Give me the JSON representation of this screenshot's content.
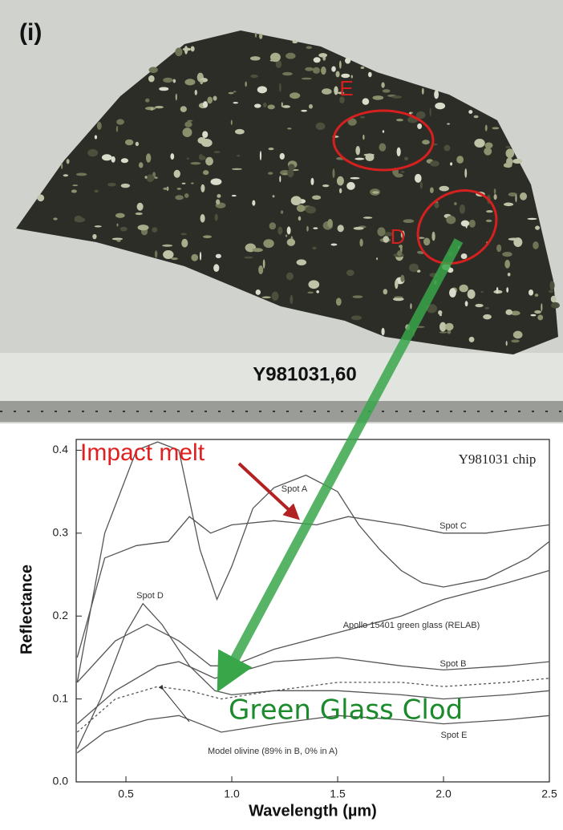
{
  "photo": {
    "panel_label": "(i)",
    "ellipse_e": "E",
    "ellipse_d": "D",
    "sample": "Y981031,60"
  },
  "chart_data": {
    "type": "line",
    "note": "Y981031 chip",
    "x_label": "Wavelength (µm)",
    "y_label": "Reflectance",
    "annotations": {
      "impact_melt": "Impact melt",
      "green_glass": "Green Glass Clod"
    },
    "xlim": [
      0.265,
      2.5
    ],
    "ylim": [
      0,
      0.413
    ],
    "xticks": [
      0.5,
      {
        "value": 1,
        "label": "1.0"
      },
      1.5,
      {
        "value": 2,
        "label": "2.0"
      },
      2.5
    ],
    "yticks": [
      {
        "value": 0,
        "label": "0.0"
      },
      0.1,
      0.2,
      0.3,
      0.4
    ],
    "series": [
      {
        "name": "Spot A",
        "color": "#555555",
        "x": [
          0.27,
          0.4,
          0.55,
          0.65,
          0.75,
          0.85,
          0.93,
          1.0,
          1.1,
          1.2,
          1.35,
          1.5,
          1.6,
          1.7,
          1.8,
          1.9,
          2.0,
          2.2,
          2.4,
          2.5
        ],
        "values": [
          0.12,
          0.3,
          0.4,
          0.41,
          0.4,
          0.28,
          0.22,
          0.26,
          0.33,
          0.355,
          0.37,
          0.35,
          0.31,
          0.28,
          0.255,
          0.24,
          0.235,
          0.245,
          0.27,
          0.29
        ]
      },
      {
        "name": "Spot C",
        "color": "#555555",
        "x": [
          0.27,
          0.4,
          0.55,
          0.7,
          0.8,
          0.9,
          1.0,
          1.2,
          1.4,
          1.55,
          1.8,
          2.0,
          2.2,
          2.5
        ],
        "values": [
          0.15,
          0.27,
          0.285,
          0.29,
          0.32,
          0.3,
          0.31,
          0.315,
          0.31,
          0.32,
          0.31,
          0.3,
          0.3,
          0.31
        ]
      },
      {
        "name": "Apollo 15401 green glass (RELAB)",
        "color": "#555555",
        "x": [
          0.27,
          0.45,
          0.6,
          0.75,
          0.9,
          1.0,
          1.2,
          1.5,
          1.8,
          2.0,
          2.3,
          2.5
        ],
        "values": [
          0.12,
          0.17,
          0.19,
          0.17,
          0.14,
          0.14,
          0.16,
          0.18,
          0.2,
          0.22,
          0.24,
          0.255
        ]
      },
      {
        "name": "Spot D",
        "color": "#555555",
        "x": [
          0.27,
          0.38,
          0.5,
          0.58,
          0.67,
          0.8,
          0.92,
          1.0,
          1.2,
          1.5,
          1.8,
          2.0,
          2.3,
          2.5
        ],
        "values": [
          0.04,
          0.1,
          0.18,
          0.215,
          0.19,
          0.14,
          0.11,
          0.105,
          0.11,
          0.11,
          0.105,
          0.1,
          0.105,
          0.11
        ]
      },
      {
        "name": "Spot B",
        "color": "#555555",
        "x": [
          0.27,
          0.45,
          0.65,
          0.75,
          0.92,
          1.0,
          1.2,
          1.5,
          1.8,
          2.0,
          2.3,
          2.5
        ],
        "values": [
          0.07,
          0.11,
          0.14,
          0.145,
          0.125,
          0.13,
          0.145,
          0.15,
          0.14,
          0.135,
          0.14,
          0.145
        ]
      },
      {
        "name": "Model olivine (89% in B, 0% in A)",
        "color": "#555555",
        "dashed": true,
        "x": [
          0.27,
          0.45,
          0.65,
          0.8,
          0.95,
          1.2,
          1.5,
          1.8,
          2.0,
          2.3,
          2.5
        ],
        "values": [
          0.06,
          0.1,
          0.115,
          0.11,
          0.1,
          0.11,
          0.12,
          0.12,
          0.115,
          0.12,
          0.125
        ]
      },
      {
        "name": "Spot E",
        "color": "#555555",
        "x": [
          0.27,
          0.4,
          0.6,
          0.75,
          0.95,
          1.2,
          1.5,
          1.8,
          2.0,
          2.3,
          2.5
        ],
        "values": [
          0.035,
          0.06,
          0.075,
          0.08,
          0.06,
          0.07,
          0.08,
          0.075,
          0.07,
          0.075,
          0.08
        ]
      }
    ]
  }
}
